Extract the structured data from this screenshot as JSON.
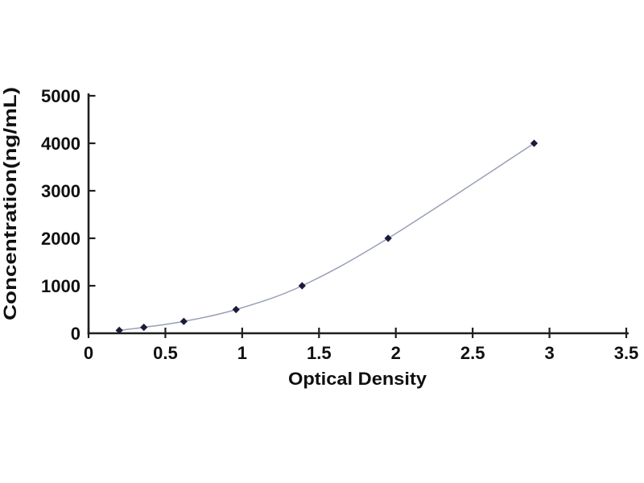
{
  "page": {
    "background_color": "#ffffff"
  },
  "chart_data": {
    "type": "line",
    "subtype": "standard-curve-scatter-with-smooth-line",
    "title": "",
    "xlabel": "Optical Density",
    "ylabel": "Concentration(ng/mL)",
    "x": [
      0.2,
      0.36,
      0.62,
      0.96,
      1.39,
      1.95,
      2.9
    ],
    "y": [
      62.5,
      125,
      250,
      500,
      1000,
      2000,
      4000
    ],
    "xlim": [
      0,
      3.5
    ],
    "ylim": [
      0,
      5000
    ],
    "x_ticks": [
      0,
      0.5,
      1,
      1.5,
      2,
      2.5,
      3,
      3.5
    ],
    "x_tick_labels": [
      "0",
      "0.5",
      "1",
      "1.5",
      "2",
      "2.5",
      "3",
      "3.5"
    ],
    "y_ticks": [
      0,
      1000,
      2000,
      3000,
      4000,
      5000
    ],
    "y_tick_labels": [
      "0",
      "1000",
      "2000",
      "3000",
      "4000",
      "5000"
    ],
    "grid": false,
    "legend": null,
    "marker": "diamond",
    "colors": {
      "line": "#99a0b6",
      "marker": "#1b1b3c",
      "axis": "#1f1f1f",
      "text": "#101010"
    }
  }
}
